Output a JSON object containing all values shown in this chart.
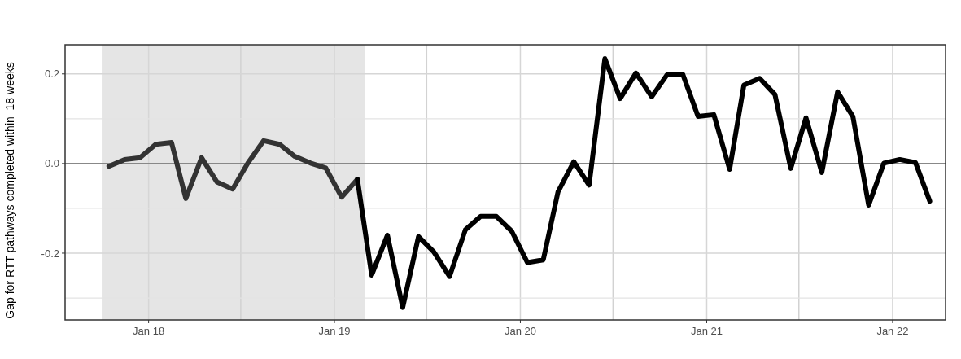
{
  "chart_data": {
    "type": "line",
    "ylabel": "Gap for RTT pathways completed within  18 weeks",
    "xlim": [
      "2017-07-21",
      "2022-04-15"
    ],
    "ylim": [
      -0.349,
      0.265
    ],
    "xticks": [
      {
        "value": "2018-01-01",
        "label": "Jan 18"
      },
      {
        "value": "2018-07-01",
        "label": null
      },
      {
        "value": "2019-01-01",
        "label": "Jan 19"
      },
      {
        "value": "2019-07-01",
        "label": null
      },
      {
        "value": "2020-01-01",
        "label": "Jan 20"
      },
      {
        "value": "2020-07-01",
        "label": null
      },
      {
        "value": "2021-01-01",
        "label": "Jan 21"
      },
      {
        "value": "2021-07-01",
        "label": null
      },
      {
        "value": "2022-01-01",
        "label": "Jan 22"
      }
    ],
    "yticks": [
      {
        "value": -0.3,
        "label": null
      },
      {
        "value": -0.2,
        "label": "-0.2"
      },
      {
        "value": -0.1,
        "label": null
      },
      {
        "value": 0,
        "label": "0.0"
      },
      {
        "value": 0.1,
        "label": null
      },
      {
        "value": 0.2,
        "label": "0.2"
      }
    ],
    "grid": true,
    "line_style": "solid",
    "marker": "none",
    "ref_lines": [
      {
        "axis": "y",
        "value": 0,
        "color": "#888888"
      }
    ],
    "bands": [
      {
        "axis": "x",
        "from": "2017-10-01",
        "to": "2019-03-01",
        "color": "#e5e5e5"
      }
    ],
    "series": [
      {
        "color": "#333333",
        "x": [
          "2017-10-15",
          "2017-11-15",
          "2017-12-15",
          "2018-01-15",
          "2018-02-15",
          "2018-03-15",
          "2018-04-15",
          "2018-05-15",
          "2018-06-15",
          "2018-07-15",
          "2018-08-15",
          "2018-09-15",
          "2018-10-15",
          "2018-11-15",
          "2018-12-15",
          "2019-01-15",
          "2019-02-15"
        ],
        "values": [
          -0.006,
          0.009,
          0.013,
          0.043,
          0.047,
          -0.078,
          0.013,
          -0.041,
          -0.057,
          0.001,
          0.051,
          0.043,
          0.016,
          0.001,
          -0.01,
          -0.075,
          -0.035
        ]
      },
      {
        "color": "#000000",
        "x": [
          "2019-02-15",
          "2019-03-15",
          "2019-04-15",
          "2019-05-15",
          "2019-06-15",
          "2019-07-15",
          "2019-08-15",
          "2019-09-15",
          "2019-10-15",
          "2019-11-15",
          "2019-12-15",
          "2020-01-15",
          "2020-02-15",
          "2020-03-15",
          "2020-04-15",
          "2020-05-15",
          "2020-06-15",
          "2020-07-15",
          "2020-08-15",
          "2020-09-15",
          "2020-10-15",
          "2020-11-15",
          "2020-12-15",
          "2021-01-15",
          "2021-02-15",
          "2021-03-15",
          "2021-04-15",
          "2021-05-15",
          "2021-06-15",
          "2021-07-15",
          "2021-08-15",
          "2021-09-15",
          "2021-10-15",
          "2021-11-15",
          "2021-12-15",
          "2022-01-15",
          "2022-02-15",
          "2022-03-15"
        ],
        "values": [
          -0.035,
          -0.249,
          -0.16,
          -0.321,
          -0.163,
          -0.197,
          -0.252,
          -0.148,
          -0.118,
          -0.118,
          -0.151,
          -0.221,
          -0.215,
          -0.063,
          0.004,
          -0.048,
          0.234,
          0.145,
          0.202,
          0.149,
          0.198,
          0.199,
          0.105,
          0.109,
          -0.013,
          0.175,
          0.19,
          0.154,
          -0.011,
          0.102,
          -0.02,
          0.16,
          0.105,
          -0.093,
          0.001,
          0.009,
          0.002,
          -0.084
        ]
      }
    ]
  }
}
